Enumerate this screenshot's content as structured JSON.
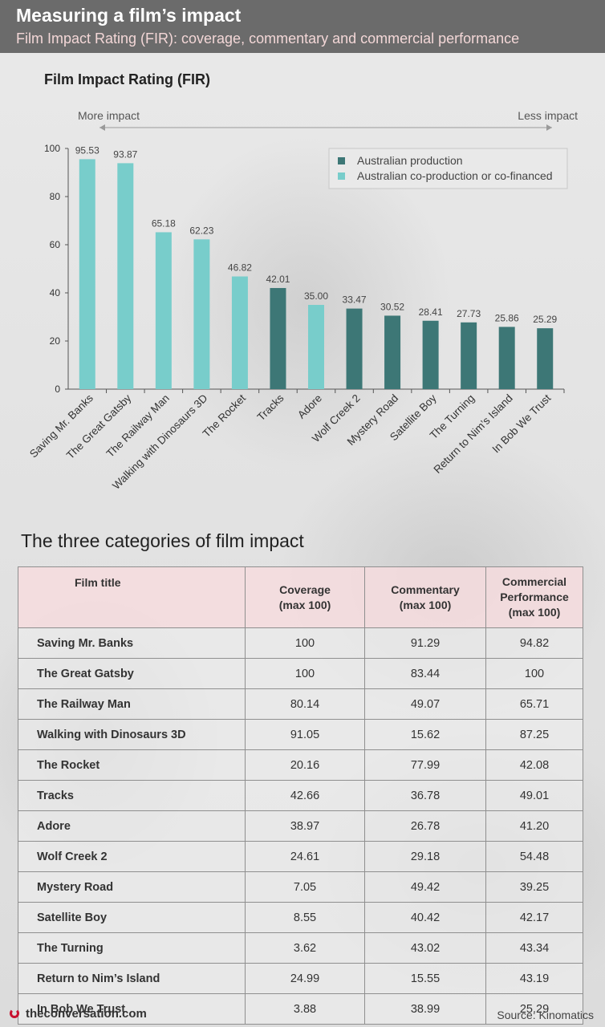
{
  "header": {
    "title": "Measuring a film’s impact",
    "subtitle": "Film Impact Rating (FIR): coverage, commentary and commercial performance"
  },
  "colors": {
    "australian_production": "#3d7776",
    "co_production": "#78cdcb",
    "header_bg": "#6b6b6b"
  },
  "chart_data": {
    "type": "bar",
    "title": "Film Impact Rating (FIR)",
    "left_annotation": "More impact",
    "right_annotation": "Less impact",
    "categories": [
      "Saving Mr. Banks",
      "The Great Gatsby",
      "The Railway Man",
      "Walking with Dinosaurs 3D",
      "The Rocket",
      "Tracks",
      "Adore",
      "Wolf Creek 2",
      "Mystery Road",
      "Satellite Boy",
      "The Turning",
      "Return to Nim’s Island",
      "In Bob We Trust"
    ],
    "values": [
      95.53,
      93.87,
      65.18,
      62.23,
      46.82,
      42.01,
      35.0,
      33.47,
      30.52,
      28.41,
      27.73,
      25.86,
      25.29
    ],
    "value_labels": [
      "95.53",
      "93.87",
      "65.18",
      "62.23",
      "46.82",
      "42.01",
      "35.00",
      "33.47",
      "30.52",
      "28.41",
      "27.73",
      "25.86",
      "25.29"
    ],
    "series_group": [
      "co",
      "co",
      "co",
      "co",
      "co",
      "aus",
      "co",
      "aus",
      "aus",
      "aus",
      "aus",
      "aus",
      "aus"
    ],
    "legend": [
      {
        "key": "aus",
        "label": "Australian production"
      },
      {
        "key": "co",
        "label": "Australian co-production or co-financed"
      }
    ],
    "legend_position": "top-right",
    "ylim": [
      0,
      100
    ],
    "yticks": [
      0,
      20,
      40,
      60,
      80,
      100
    ],
    "grid": false
  },
  "table": {
    "title": "The three categories of film impact",
    "headers": [
      "Film title",
      "Coverage\n(max 100)",
      "Commentary\n(max 100)",
      "Commercial\nPerformance\n(max 100)"
    ],
    "rows": [
      [
        "Saving Mr. Banks",
        "100",
        "91.29",
        "94.82"
      ],
      [
        "The Great Gatsby",
        "100",
        "83.44",
        "100"
      ],
      [
        "The Railway Man",
        "80.14",
        "49.07",
        "65.71"
      ],
      [
        "Walking with Dinosaurs 3D",
        "91.05",
        "15.62",
        "87.25"
      ],
      [
        "The Rocket",
        "20.16",
        "77.99",
        "42.08"
      ],
      [
        "Tracks",
        "42.66",
        "36.78",
        "49.01"
      ],
      [
        "Adore",
        "38.97",
        "26.78",
        "41.20"
      ],
      [
        "Wolf Creek 2",
        "24.61",
        "29.18",
        "54.48"
      ],
      [
        "Mystery Road",
        "7.05",
        "49.42",
        "39.25"
      ],
      [
        "Satellite Boy",
        "8.55",
        "40.42",
        "42.17"
      ],
      [
        "The Turning",
        "3.62",
        "43.02",
        "43.34"
      ],
      [
        "Return to Nim’s Island",
        "24.99",
        "15.55",
        "43.19"
      ],
      [
        "In Bob We Trust",
        "3.88",
        "38.99",
        "25.29"
      ]
    ]
  },
  "footer": {
    "site": "theconversation.com",
    "source": "Source: Kinomatics"
  }
}
